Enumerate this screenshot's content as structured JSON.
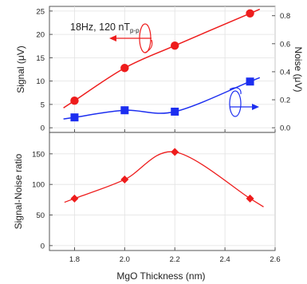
{
  "chart_data": [
    {
      "type": "scatter",
      "panel": "top",
      "annotation": {
        "main": "18Hz, 120 nT",
        "sub": "p-p"
      },
      "xlabel": "",
      "ylabel": "Signal (μV)",
      "y2label": "Noise (μV)",
      "xlim": [
        1.7,
        2.6
      ],
      "ylim": [
        -1,
        26
      ],
      "y2lim": [
        -0.0333,
        0.8667
      ],
      "xticks": [
        "1.8",
        "2.0",
        "2.2",
        "2.4",
        "2.6"
      ],
      "yticks": [
        "0",
        "5",
        "10",
        "15",
        "20",
        "25"
      ],
      "y2ticks": [
        "0.0",
        "0.2",
        "0.4",
        "0.6",
        "0.8"
      ],
      "series": [
        {
          "axis": "left",
          "marker": "circle",
          "color": "#ee1c1c",
          "x": [
            1.8,
            2.0,
            2.2,
            2.5
          ],
          "y": [
            5.8,
            12.8,
            17.6,
            24.5
          ]
        },
        {
          "axis": "right",
          "marker": "square",
          "color": "#1c2ef0",
          "x": [
            1.8,
            2.0,
            2.2,
            2.5
          ],
          "y": [
            0.074,
            0.125,
            0.115,
            0.33
          ]
        }
      ]
    },
    {
      "type": "line",
      "panel": "bottom",
      "xlabel": "MgO Thickness (nm)",
      "ylabel": "Signal-Noise ratio",
      "xlim": [
        1.7,
        2.6
      ],
      "ylim": [
        -8,
        185
      ],
      "xticks": [
        "1.8",
        "2.0",
        "2.2",
        "2.4",
        "2.6"
      ],
      "yticks": [
        "0",
        "50",
        "100",
        "150"
      ],
      "series": [
        {
          "marker": "diamond",
          "color": "#ee1c1c",
          "x": [
            1.8,
            2.0,
            2.2,
            2.5
          ],
          "y": [
            77,
            108,
            153,
            77
          ]
        }
      ]
    }
  ]
}
